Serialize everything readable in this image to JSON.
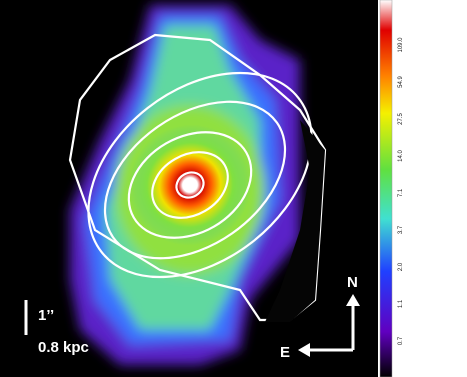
{
  "colorbar": {
    "ticks": [
      "109.0",
      "54.9",
      "27.5",
      "14.0",
      "7.1",
      "3.7",
      "2.0",
      "1.1",
      "0.7"
    ]
  },
  "scale_bar": {
    "angular": "1’’",
    "physical": "0.8 kpc"
  },
  "compass": {
    "north": "N",
    "east": "E"
  }
}
